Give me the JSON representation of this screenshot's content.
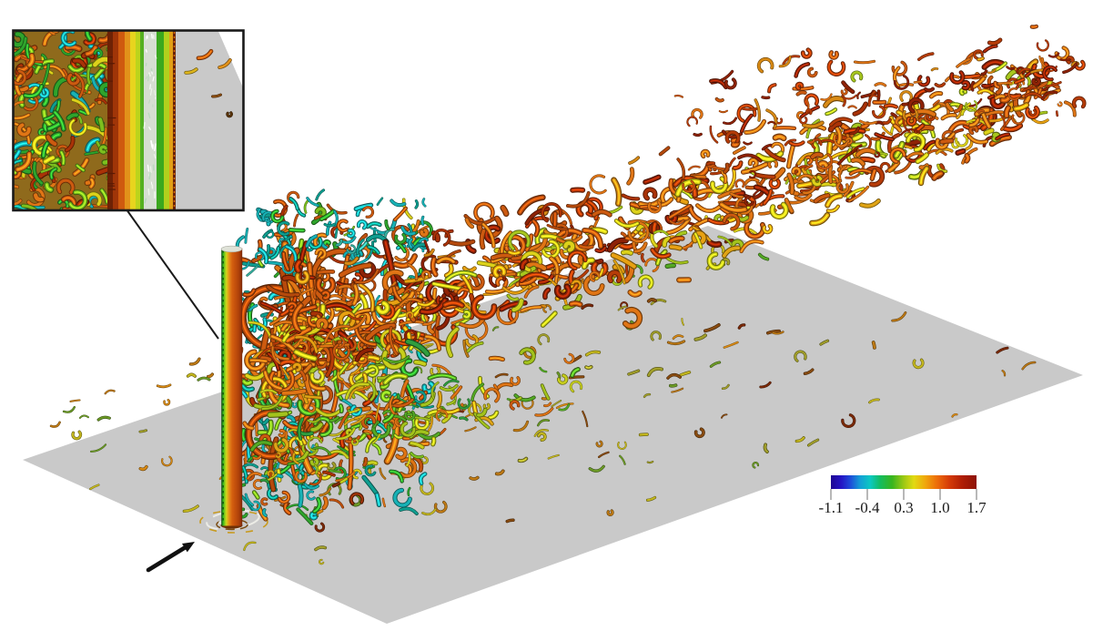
{
  "figure": {
    "background_color": "#ffffff"
  },
  "scene": {
    "plane_color": "#c9c9c9",
    "cylinder_gradient": [
      {
        "o": 0,
        "c": "#123f10"
      },
      {
        "o": 4,
        "c": "#1e7c16"
      },
      {
        "o": 10,
        "c": "#3fbf1e"
      },
      {
        "o": 17,
        "c": "#8ecb1a"
      },
      {
        "o": 24,
        "c": "#cfd61e"
      },
      {
        "o": 31,
        "c": "#e2ae18"
      },
      {
        "o": 40,
        "c": "#e2821a"
      },
      {
        "o": 52,
        "c": "#d4600f"
      },
      {
        "o": 68,
        "c": "#c24e0c"
      },
      {
        "o": 84,
        "c": "#ad400a"
      },
      {
        "o": 94,
        "c": "#93320a"
      },
      {
        "o": 100,
        "c": "#6e2406"
      }
    ],
    "cylinder_top_color": "#dfe2d8",
    "cylinder_base_color": "#6e3006",
    "base_ring_colors": [
      "#ecece6",
      "#c89a1e",
      "#7a4a10"
    ],
    "palettes": {
      "plume_top": [
        [
          "#b64a0c",
          3
        ],
        [
          "#cc5a10",
          3
        ],
        [
          "#a93207",
          2
        ],
        [
          "#8e2206",
          2
        ],
        [
          "#e07515",
          2
        ],
        [
          "#d98a14",
          1
        ]
      ],
      "plume_mid": [
        [
          "#e07515",
          4
        ],
        [
          "#cc5a10",
          3
        ],
        [
          "#e8a112",
          2
        ],
        [
          "#b63c08",
          2
        ],
        [
          "#ddd21a",
          1.5
        ],
        [
          "#a8c81e",
          1.5
        ],
        [
          "#8e2206",
          1
        ]
      ],
      "plume_low": [
        [
          "#c8cf1c",
          3
        ],
        [
          "#a3c31c",
          3
        ],
        [
          "#e0a415",
          2
        ],
        [
          "#e07515",
          2
        ],
        [
          "#55aa24",
          2
        ],
        [
          "#2f9e3e",
          1
        ],
        [
          "#cc5a10",
          1
        ]
      ],
      "wake": [
        [
          "#18b2b6",
          3
        ],
        [
          "#0f9e90",
          2
        ],
        [
          "#2fa42c",
          2
        ],
        [
          "#7cc01e",
          1.5
        ],
        [
          "#e07515",
          2.5
        ],
        [
          "#c1520e",
          2
        ],
        [
          "#a93207",
          1
        ],
        [
          "#ddd21a",
          1
        ]
      ],
      "wake_teal": [
        [
          "#18b2b6",
          3
        ],
        [
          "#0f9e90",
          2
        ],
        [
          "#36b0a0",
          1.5
        ],
        [
          "#2fa42c",
          1
        ],
        [
          "#cc5a10",
          1
        ]
      ],
      "braids": [
        [
          "#cc5a10",
          3
        ],
        [
          "#b64a0c",
          2
        ],
        [
          "#e07515",
          2
        ],
        [
          "#8e2206",
          1
        ]
      ],
      "tail": [
        [
          "#b63c08",
          3
        ],
        [
          "#8e2206",
          3
        ],
        [
          "#cc5a10",
          2.5
        ],
        [
          "#e07515",
          1.5
        ],
        [
          "#d98a14",
          1
        ],
        [
          "#a8c81e",
          0.5
        ]
      ],
      "surface": [
        [
          "#a3a02a",
          2
        ],
        [
          "#c5b81e",
          2
        ],
        [
          "#bf7a14",
          2
        ],
        [
          "#6d9c26",
          1.5
        ],
        [
          "#8a4c10",
          1
        ],
        [
          "#7c2a08",
          0.8
        ],
        [
          "#d98a14",
          1
        ]
      ],
      "inset_turb": [
        [
          "#2fa42c",
          3
        ],
        [
          "#7cc01e",
          2
        ],
        [
          "#e07515",
          3
        ],
        [
          "#cc5a10",
          2
        ],
        [
          "#18b2b6",
          1.5
        ],
        [
          "#a93207",
          1.5
        ],
        [
          "#ddd21a",
          1.5
        ],
        [
          "#0f9e90",
          1
        ]
      ]
    }
  },
  "inset": {
    "border_color": "#1a1a1a",
    "plane_color": "#c9c9c9",
    "turb_base_color": "#8f6a1c",
    "speckle_colors": [
      "#ffffff",
      "#eef5ea",
      "#bcd8c0"
    ],
    "stripes": [
      {
        "c": "#6e2205",
        "w": 6
      },
      {
        "c": "#a03508",
        "w": 6
      },
      {
        "c": "#cf5a0f",
        "w": 7
      },
      {
        "c": "#e2921a",
        "w": 6
      },
      {
        "c": "#e8d41e",
        "w": 6
      },
      {
        "c": "#bcd41c",
        "w": 5
      },
      {
        "c": "#55b020",
        "w": 4
      },
      {
        "c": "#d6ded2",
        "w": 14,
        "speckle": true
      },
      {
        "c": "#3aa81e",
        "w": 8
      },
      {
        "c": "#b0d01d",
        "w": 6
      },
      {
        "c": "#e2a016",
        "w": 4
      },
      {
        "c": "#6a2205",
        "w": 3
      }
    ]
  },
  "annotations": {
    "flow_arrow_color": "#111111",
    "leader_line_color": "#1a1a1a"
  },
  "colorbar": {
    "ticks": [
      "-1.1",
      "-0.4",
      "0.3",
      "1.0",
      "1.7"
    ],
    "tick_values": [
      -1.1,
      -0.4,
      0.3,
      1.0,
      1.7
    ],
    "tick_color": "#9a9a9a",
    "label_color": "#1a1a1a",
    "gradient": [
      {
        "o": 0,
        "c": "#1e0692"
      },
      {
        "o": 7,
        "c": "#2414c4"
      },
      {
        "o": 13,
        "c": "#1e48d8"
      },
      {
        "o": 20,
        "c": "#149ed6"
      },
      {
        "o": 27,
        "c": "#0cc8c2"
      },
      {
        "o": 34,
        "c": "#14bc5e"
      },
      {
        "o": 42,
        "c": "#38b51e"
      },
      {
        "o": 50,
        "c": "#9cc814"
      },
      {
        "o": 57,
        "c": "#e2da12"
      },
      {
        "o": 65,
        "c": "#f0a60c"
      },
      {
        "o": 73,
        "c": "#ec6c0a"
      },
      {
        "o": 81,
        "c": "#d63c08"
      },
      {
        "o": 90,
        "c": "#b01e06"
      },
      {
        "o": 100,
        "c": "#8c1206"
      }
    ]
  }
}
